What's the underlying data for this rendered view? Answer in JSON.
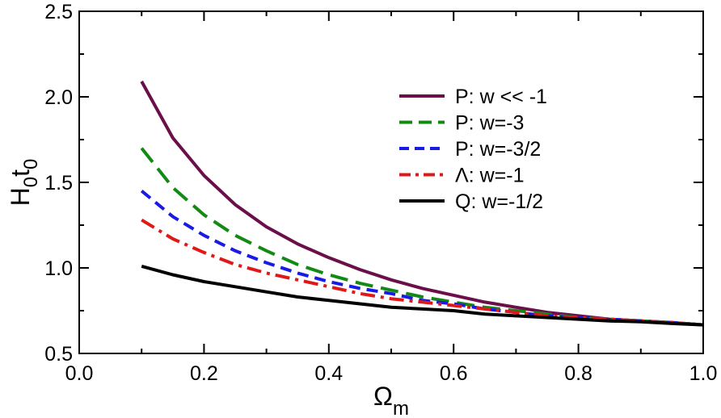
{
  "chart_data": {
    "type": "line",
    "xlabel": "Ω",
    "xlabel_sub": "m",
    "ylabel": "H",
    "ylabel_sub1": "0",
    "ylabel_mid": "t",
    "ylabel_sub2": "0",
    "xlim": [
      0.0,
      1.0
    ],
    "ylim": [
      0.5,
      2.5
    ],
    "x_ticks": [
      "0.0",
      "0.2",
      "0.4",
      "0.6",
      "0.8",
      "1.0"
    ],
    "y_ticks": [
      "0.5",
      "1.0",
      "1.5",
      "2.0",
      "2.5"
    ],
    "grid": false,
    "legend_position": "top-right",
    "x": [
      0.1,
      0.15,
      0.2,
      0.25,
      0.3,
      0.35,
      0.4,
      0.45,
      0.5,
      0.55,
      0.6,
      0.65,
      0.7,
      0.75,
      0.8,
      0.85,
      0.9,
      0.95,
      1.0
    ],
    "series": [
      {
        "name": "P: w << -1",
        "color": "#6b0f4a",
        "dash": "solid",
        "values": [
          2.09,
          1.76,
          1.54,
          1.37,
          1.24,
          1.14,
          1.06,
          0.99,
          0.93,
          0.88,
          0.84,
          0.8,
          0.77,
          0.74,
          0.72,
          0.7,
          0.69,
          0.68,
          0.667
        ]
      },
      {
        "name": "P: w=-3",
        "color": "#138a13",
        "dash": "long-dash",
        "values": [
          1.7,
          1.47,
          1.31,
          1.19,
          1.1,
          1.02,
          0.96,
          0.91,
          0.87,
          0.83,
          0.8,
          0.77,
          0.75,
          0.73,
          0.71,
          0.7,
          0.69,
          0.68,
          0.667
        ]
      },
      {
        "name": "P: w=-3/2",
        "color": "#1a1ae6",
        "dash": "dash",
        "values": [
          1.45,
          1.3,
          1.19,
          1.1,
          1.03,
          0.97,
          0.92,
          0.88,
          0.85,
          0.81,
          0.79,
          0.76,
          0.74,
          0.72,
          0.71,
          0.7,
          0.69,
          0.68,
          0.667
        ]
      },
      {
        "name": "Λ: w=-1",
        "color": "#e01818",
        "dash": "dash-dot",
        "values": [
          1.28,
          1.17,
          1.09,
          1.02,
          0.97,
          0.93,
          0.89,
          0.85,
          0.82,
          0.8,
          0.78,
          0.76,
          0.74,
          0.72,
          0.71,
          0.7,
          0.69,
          0.68,
          0.667
        ]
      },
      {
        "name": "Q: w=-1/2",
        "color": "#000000",
        "dash": "solid",
        "values": [
          1.01,
          0.96,
          0.92,
          0.89,
          0.86,
          0.83,
          0.81,
          0.79,
          0.77,
          0.76,
          0.75,
          0.73,
          0.72,
          0.71,
          0.7,
          0.69,
          0.685,
          0.675,
          0.667
        ]
      }
    ]
  }
}
